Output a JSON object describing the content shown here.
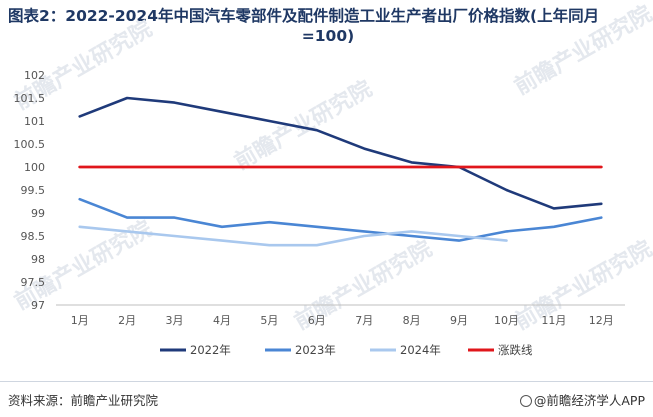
{
  "title_line1": "图表2：2022-2024年中国汽车零部件及配件制造工业生产者出厂价格指数(上年同月",
  "title_line2": "=100)",
  "footer": {
    "source": "资料来源：前瞻产业研究院",
    "brand": "@前瞻经济学人APP"
  },
  "watermark": "前瞻产业研究院",
  "chart_data": {
    "type": "line",
    "categories": [
      "1月",
      "2月",
      "3月",
      "4月",
      "5月",
      "6月",
      "7月",
      "8月",
      "9月",
      "10月",
      "11月",
      "12月"
    ],
    "ylim": [
      97,
      102
    ],
    "yticks": [
      "97",
      "97.5",
      "98",
      "98.5",
      "99",
      "99.5",
      "100",
      "100.5",
      "101",
      "101.5",
      "102"
    ],
    "grid": false,
    "legend_position": "bottom",
    "series": [
      {
        "name": "2022年",
        "color": "#1f3a7a",
        "values": [
          101.1,
          101.5,
          101.4,
          101.2,
          101.0,
          100.8,
          100.4,
          100.1,
          100.0,
          99.5,
          99.1,
          99.2
        ]
      },
      {
        "name": "2023年",
        "color": "#4a86d4",
        "values": [
          99.3,
          98.9,
          98.9,
          98.7,
          98.8,
          98.7,
          98.6,
          98.5,
          98.4,
          98.6,
          98.7,
          98.9
        ]
      },
      {
        "name": "2024年",
        "color": "#a9c8ee",
        "values": [
          98.7,
          98.6,
          98.5,
          98.4,
          98.3,
          98.3,
          98.5,
          98.6,
          98.5,
          98.4,
          null,
          null
        ]
      },
      {
        "name": "涨跌线",
        "color": "#e0161b",
        "values": [
          100,
          100,
          100,
          100,
          100,
          100,
          100,
          100,
          100,
          100,
          100,
          100
        ]
      }
    ]
  }
}
